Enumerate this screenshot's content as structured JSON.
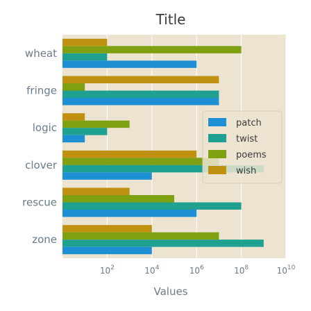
{
  "chart_data": {
    "type": "bar",
    "orientation": "horizontal",
    "title": "Title",
    "xlabel": "Values",
    "ylabel": "",
    "x_scale": "log",
    "xlim": [
      1,
      10000000000
    ],
    "categories": [
      "zone",
      "rescue",
      "clover",
      "logic",
      "fringe",
      "wheat"
    ],
    "series": [
      {
        "name": "patch",
        "color": "#1f8fd4",
        "values": [
          10000,
          1000000,
          10000,
          10,
          10000000,
          1000000
        ]
      },
      {
        "name": "twist",
        "color": "#20a090",
        "values": [
          1000000000,
          100000000,
          1000000000,
          100,
          10000000,
          100
        ]
      },
      {
        "name": "poems",
        "color": "#7fa010",
        "values": [
          10000000,
          100000,
          10000000,
          1000,
          10,
          100000000
        ]
      },
      {
        "name": "wish",
        "color": "#c09010",
        "values": [
          10000,
          1000,
          1000000,
          10,
          10000000,
          100
        ]
      }
    ],
    "ticks": [
      {
        "value": 100,
        "base": "10",
        "exp": "2"
      },
      {
        "value": 10000,
        "base": "10",
        "exp": "4"
      },
      {
        "value": 1000000,
        "base": "10",
        "exp": "6"
      },
      {
        "value": 100000000,
        "base": "10",
        "exp": "8"
      },
      {
        "value": 10000000000,
        "base": "10",
        "exp": "10"
      }
    ],
    "grid": true,
    "legend_position": "center-right",
    "background_color": "#ece4d0",
    "grid_color": "#ffffff"
  }
}
